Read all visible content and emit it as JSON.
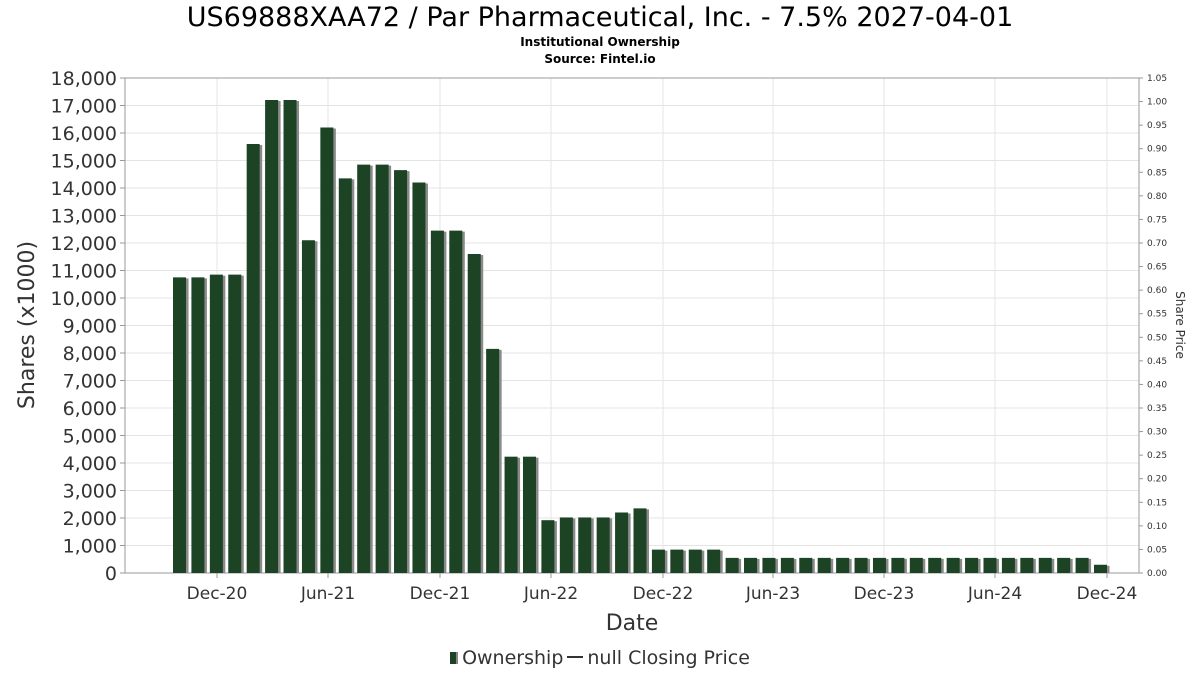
{
  "chart_data": {
    "type": "bar",
    "title": "US69888XAA72 / Par Pharmaceutical, Inc. - 7.5% 2027-04-01",
    "subtitle": "Institutional Ownership",
    "source": "Source: Fintel.io",
    "xlabel": "Date",
    "ylabel": "Shares (x1000)",
    "y2label": "Share Price",
    "ylim": [
      0,
      18000
    ],
    "y2lim": [
      0,
      1.05
    ],
    "grid": true,
    "legend_position": "bottom",
    "legend": [
      "Ownership",
      "null Closing Price"
    ],
    "x_tick_labels": [
      "Dec-20",
      "Jun-21",
      "Dec-21",
      "Jun-22",
      "Dec-22",
      "Jun-23",
      "Dec-23",
      "Jun-24",
      "Dec-24"
    ],
    "y_tick_labels": [
      "0",
      "1,000",
      "2,000",
      "3,000",
      "4,000",
      "5,000",
      "6,000",
      "7,000",
      "8,000",
      "9,000",
      "10,000",
      "11,000",
      "12,000",
      "13,000",
      "14,000",
      "15,000",
      "16,000",
      "17,000",
      "18,000"
    ],
    "y2_tick_labels": [
      "0.00",
      "0.05",
      "0.10",
      "0.15",
      "0.20",
      "0.25",
      "0.30",
      "0.35",
      "0.40",
      "0.45",
      "0.50",
      "0.55",
      "0.60",
      "0.65",
      "0.70",
      "0.75",
      "0.80",
      "0.85",
      "0.90",
      "0.95",
      "1.00",
      "1.05"
    ],
    "series": [
      {
        "name": "Ownership",
        "color": "#1b4324",
        "values": [
          10750,
          10750,
          10850,
          10850,
          15600,
          17200,
          17200,
          12100,
          16200,
          14350,
          14850,
          14850,
          14650,
          14200,
          12450,
          12450,
          11600,
          8150,
          4230,
          4230,
          1920,
          2020,
          2020,
          2020,
          2200,
          2350,
          850,
          850,
          850,
          850,
          550,
          550,
          550,
          550,
          550,
          550,
          550,
          550,
          550,
          550,
          550,
          550,
          550,
          550,
          550,
          550,
          550,
          550,
          550,
          550,
          300
        ]
      }
    ]
  }
}
